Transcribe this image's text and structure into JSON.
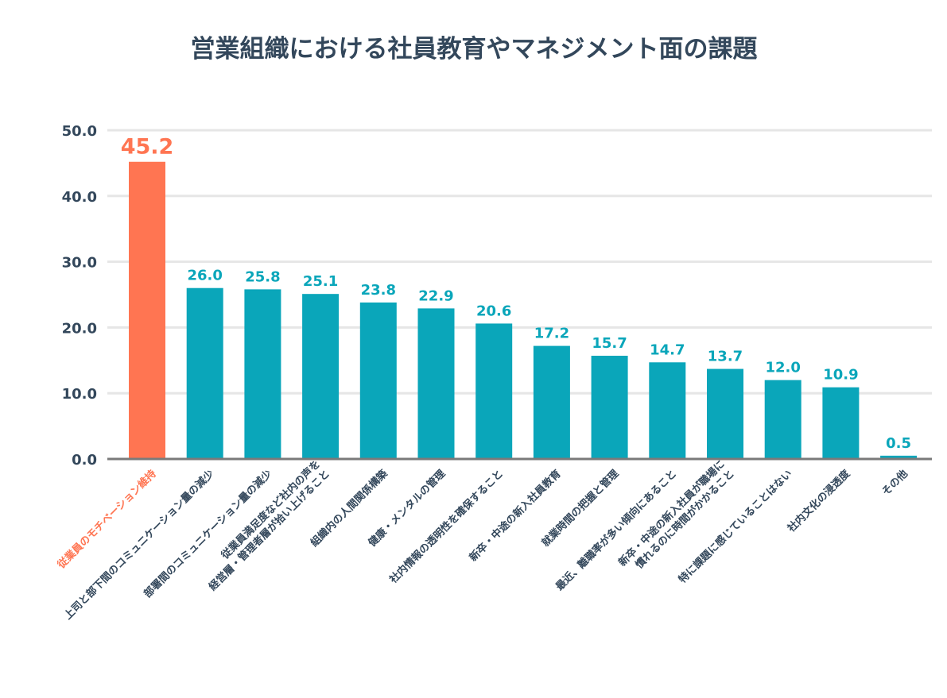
{
  "chart_data": {
    "type": "bar",
    "title": "営業組織における社員教育やマネジメント面の課題",
    "xlabel": "",
    "ylabel": "",
    "ylim": [
      0,
      50
    ],
    "yticks": [
      "0.0",
      "10.0",
      "20.0",
      "30.0",
      "40.0",
      "50.0"
    ],
    "grid": true,
    "categories": [
      [
        "従業員のモチベーション維持"
      ],
      [
        "上司と部下間のコミュニケーション量の減少"
      ],
      [
        "部署間のコミュニケーション量の減少"
      ],
      [
        "従業員満足度など社内の声を",
        "経営層・管理者層が拾い上げること"
      ],
      [
        "組織内の人間関係構築"
      ],
      [
        "健康・メンタルの管理"
      ],
      [
        "社内情報の透明性を確保すること"
      ],
      [
        "新卒・中途の新入社員教育"
      ],
      [
        "就業時間の把握と管理"
      ],
      [
        "最近、離職率が多い傾向にあること"
      ],
      [
        "新卒・中途の新入社員が職場に",
        "慣れるのに時間がかかること"
      ],
      [
        "特に課題に感じていることはない"
      ],
      [
        "社内文化の浸透度"
      ],
      [
        "その他"
      ]
    ],
    "values": [
      45.2,
      26.0,
      25.8,
      25.1,
      23.8,
      22.9,
      20.6,
      17.2,
      15.7,
      14.7,
      13.7,
      12.0,
      10.9,
      0.5
    ],
    "value_labels": [
      "45.2",
      "26.0",
      "25.8",
      "25.1",
      "23.8",
      "22.9",
      "20.6",
      "17.2",
      "15.7",
      "14.7",
      "13.7",
      "12.0",
      "10.9",
      "0.5"
    ],
    "highlight_index": 0,
    "colors": {
      "default": "#0aa6ba",
      "highlight": "#ff7552",
      "text": "#33475b",
      "grid": "#e6e6e6",
      "axis": "#7a7a7a"
    }
  }
}
